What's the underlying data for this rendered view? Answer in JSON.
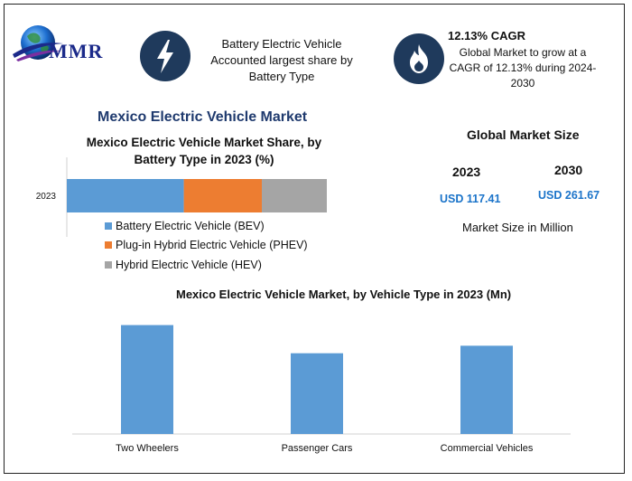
{
  "header": {
    "logo_text": "MMR",
    "highlight_1": "Battery Electric Vehicle Accounted largest share by Battery Type",
    "cagr_title": "12.13% CAGR",
    "cagr_desc": "Global Market to grow at a CAGR of 12.13% during 2024-2030",
    "bolt_icon": "lightning-bolt-icon",
    "flame_icon": "flame-icon"
  },
  "main_title": "Mexico Electric Vehicle Market",
  "global_market": {
    "title": "Global Market Size",
    "year_1": "2023",
    "value_1": "USD 117.41",
    "year_2": "2030",
    "value_2": "USD 261.67",
    "unit_note": "Market Size in Million"
  },
  "chart_data": [
    {
      "type": "bar",
      "orientation": "horizontal-stacked",
      "title": "Mexico Electric Vehicle Market Share, by Battery Type in 2023 (%)",
      "categories": [
        "2023"
      ],
      "series": [
        {
          "name": "Battery Electric Vehicle (BEV)",
          "values": [
            45
          ],
          "color": "#5b9bd5"
        },
        {
          "name": "Plug-in Hybrid Electric Vehicle (PHEV)",
          "values": [
            30
          ],
          "color": "#ed7d31"
        },
        {
          "name": "Hybrid Electric Vehicle (HEV)",
          "values": [
            25
          ],
          "color": "#a5a5a5"
        }
      ],
      "xlim": [
        0,
        100
      ],
      "legend": "bottom"
    },
    {
      "type": "bar",
      "title": "Mexico Electric Vehicle Market, by Vehicle Type in 2023 (Mn)",
      "categories": [
        "Two Wheelers",
        "Passenger Cars",
        "Commercial Vehicles"
      ],
      "values": [
        116,
        86,
        94
      ],
      "ylim": [
        0,
        130
      ],
      "color": "#5b9bd5",
      "grid": false
    }
  ]
}
